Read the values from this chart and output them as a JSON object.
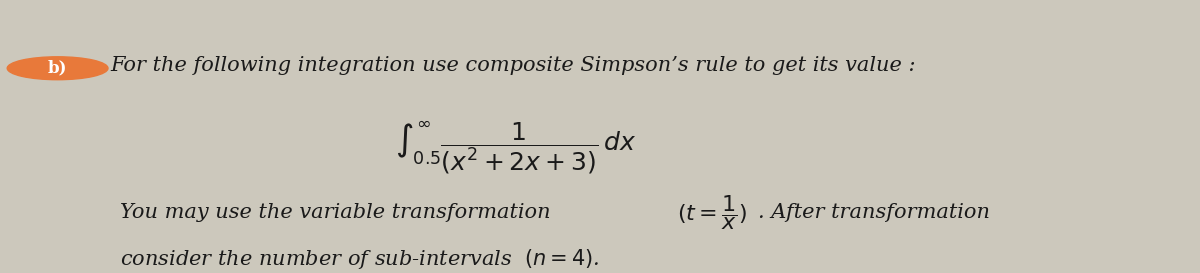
{
  "background_color": "#ccc8bc",
  "circle_color": "#e8793a",
  "circle_label": "b)",
  "circle_label_color": "#ffffff",
  "line1_text": "For the following integration use composite Simpson’s rule to get its value :",
  "integral_str": "$\\int_{0.5}^{\\infty} \\dfrac{1}{(x^2+2x+3)}\\,dx$",
  "line3_text": "You may use the variable transformation ",
  "transform_str": "$(t = \\dfrac{1}{x})$",
  "line3b_text": ". After transformation",
  "line4_text": "consider the number of sub-intervals  $(n = 4)$.",
  "text_color": "#1a1a1a",
  "fontsize_main": 15,
  "fontsize_integral": 18
}
